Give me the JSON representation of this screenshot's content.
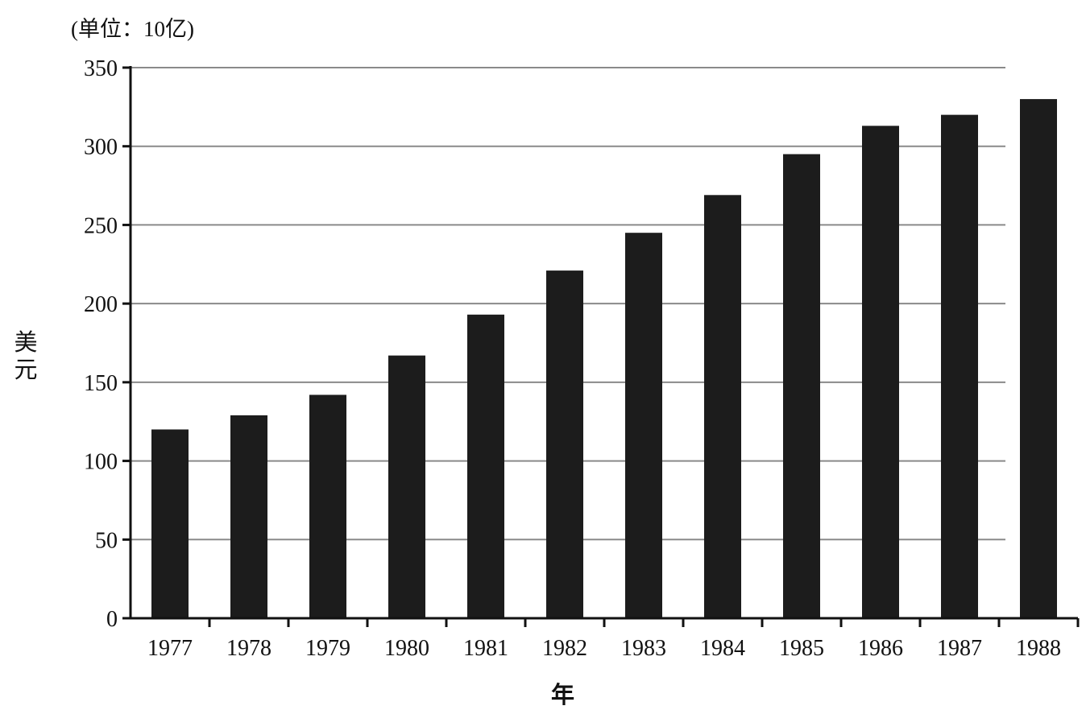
{
  "chart_data": {
    "type": "bar",
    "unit_note": "(单位：10亿)",
    "xlabel": "年",
    "ylabel": "美元",
    "categories": [
      "1977",
      "1978",
      "1979",
      "1980",
      "1981",
      "1982",
      "1983",
      "1984",
      "1985",
      "1986",
      "1987",
      "1988"
    ],
    "values": [
      120,
      129,
      142,
      167,
      193,
      221,
      245,
      269,
      295,
      313,
      320,
      330
    ],
    "ylim": [
      0,
      350
    ],
    "yticks": [
      0,
      50,
      100,
      150,
      200,
      250,
      300,
      350
    ],
    "grid": true,
    "legend": "none",
    "colors": {
      "bar": "#1c1c1c",
      "grid": "#8a8a8a",
      "axis": "#111111"
    }
  }
}
